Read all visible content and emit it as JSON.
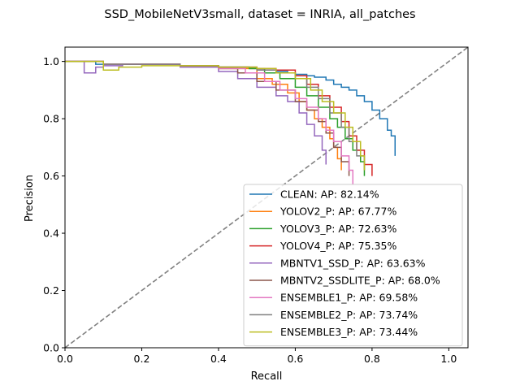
{
  "chart_data": {
    "type": "line",
    "title": "SSD_MobileNetV3small, dataset = INRIA, all_patches",
    "xlabel": "Recall",
    "ylabel": "Precision",
    "xlim": [
      0.0,
      1.05
    ],
    "ylim": [
      0.0,
      1.05
    ],
    "xticks": [
      "0.0",
      "0.2",
      "0.4",
      "0.6",
      "0.8",
      "1.0"
    ],
    "yticks": [
      "0.0",
      "0.2",
      "0.4",
      "0.6",
      "0.8",
      "1.0"
    ],
    "grid": false,
    "legend_position": "lower-right",
    "diagonal_reference": {
      "style": "dashed",
      "color": "#808080",
      "x": [
        0,
        1.05
      ],
      "y": [
        0,
        1.05
      ]
    },
    "series": [
      {
        "name": "CLEAN: AP: 82.14%",
        "color": "#1f77b4",
        "x": [
          0.0,
          0.07,
          0.08,
          0.12,
          0.2,
          0.3,
          0.4,
          0.48,
          0.52,
          0.55,
          0.58,
          0.6,
          0.63,
          0.65,
          0.68,
          0.7,
          0.72,
          0.74,
          0.76,
          0.78,
          0.8,
          0.82,
          0.84,
          0.85,
          0.86,
          0.86
        ],
        "y": [
          1.0,
          1.0,
          0.99,
          0.99,
          0.99,
          0.985,
          0.98,
          0.975,
          0.97,
          0.965,
          0.96,
          0.955,
          0.95,
          0.945,
          0.935,
          0.92,
          0.91,
          0.9,
          0.88,
          0.86,
          0.83,
          0.8,
          0.76,
          0.74,
          0.72,
          0.67
        ]
      },
      {
        "name": "YOLOV2_P: AP: 67.77%",
        "color": "#ff7f0e",
        "x": [
          0.0,
          0.1,
          0.2,
          0.3,
          0.4,
          0.5,
          0.54,
          0.58,
          0.61,
          0.63,
          0.65,
          0.67,
          0.69,
          0.7,
          0.71,
          0.72
        ],
        "y": [
          1.0,
          0.99,
          0.99,
          0.985,
          0.975,
          0.94,
          0.92,
          0.89,
          0.86,
          0.83,
          0.8,
          0.77,
          0.73,
          0.7,
          0.66,
          0.62
        ]
      },
      {
        "name": "YOLOV3_P: AP: 72.63%",
        "color": "#2ca02c",
        "x": [
          0.0,
          0.1,
          0.2,
          0.3,
          0.4,
          0.48,
          0.52,
          0.56,
          0.6,
          0.63,
          0.66,
          0.69,
          0.71,
          0.73,
          0.75,
          0.77,
          0.78
        ],
        "y": [
          1.0,
          0.99,
          0.99,
          0.985,
          0.98,
          0.975,
          0.96,
          0.94,
          0.91,
          0.88,
          0.84,
          0.8,
          0.77,
          0.73,
          0.69,
          0.65,
          0.6
        ]
      },
      {
        "name": "YOLOV4_P: AP: 75.35%",
        "color": "#d62728",
        "x": [
          0.0,
          0.1,
          0.2,
          0.3,
          0.4,
          0.5,
          0.55,
          0.6,
          0.63,
          0.66,
          0.69,
          0.72,
          0.74,
          0.76,
          0.78,
          0.8
        ],
        "y": [
          1.0,
          0.99,
          0.99,
          0.985,
          0.98,
          0.975,
          0.97,
          0.95,
          0.92,
          0.88,
          0.84,
          0.79,
          0.74,
          0.69,
          0.64,
          0.6
        ]
      },
      {
        "name": "MBNTV1_SSD_P: AP: 63.63%",
        "color": "#9467bd",
        "x": [
          0.0,
          0.04,
          0.05,
          0.08,
          0.1,
          0.15,
          0.2,
          0.3,
          0.4,
          0.45,
          0.5,
          0.55,
          0.58,
          0.61,
          0.63,
          0.65,
          0.67,
          0.68
        ],
        "y": [
          1.0,
          1.0,
          0.96,
          0.98,
          0.985,
          0.99,
          0.99,
          0.98,
          0.965,
          0.94,
          0.91,
          0.88,
          0.86,
          0.82,
          0.78,
          0.74,
          0.69,
          0.64
        ]
      },
      {
        "name": "MBNTV2_SSDLITE_P: AP: 68.0%",
        "color": "#8c564b",
        "x": [
          0.0,
          0.1,
          0.2,
          0.3,
          0.4,
          0.45,
          0.5,
          0.55,
          0.6,
          0.63,
          0.66,
          0.68,
          0.7,
          0.72,
          0.74
        ],
        "y": [
          1.0,
          0.99,
          0.99,
          0.985,
          0.975,
          0.96,
          0.93,
          0.9,
          0.86,
          0.83,
          0.79,
          0.75,
          0.7,
          0.65,
          0.6
        ]
      },
      {
        "name": "ENSEMBLE1_P: AP: 69.58%",
        "color": "#e377c2",
        "x": [
          0.0,
          0.1,
          0.2,
          0.24,
          0.3,
          0.4,
          0.47,
          0.52,
          0.56,
          0.6,
          0.63,
          0.66,
          0.68,
          0.7,
          0.72,
          0.74,
          0.75
        ],
        "y": [
          1.0,
          0.99,
          0.99,
          0.99,
          0.985,
          0.975,
          0.96,
          0.93,
          0.9,
          0.87,
          0.84,
          0.8,
          0.76,
          0.72,
          0.67,
          0.62,
          0.57
        ]
      },
      {
        "name": "ENSEMBLE2_P: AP: 73.74%",
        "color": "#7f7f7f",
        "x": [
          0.0,
          0.08,
          0.1,
          0.2,
          0.3,
          0.4,
          0.5,
          0.55,
          0.6,
          0.63,
          0.66,
          0.69,
          0.72,
          0.74,
          0.76,
          0.78
        ],
        "y": [
          1.0,
          1.0,
          0.99,
          0.99,
          0.985,
          0.98,
          0.97,
          0.96,
          0.94,
          0.91,
          0.87,
          0.82,
          0.77,
          0.72,
          0.67,
          0.62
        ]
      },
      {
        "name": "ENSEMBLE3_P: AP: 73.44%",
        "color": "#bcbd22",
        "x": [
          0.0,
          0.09,
          0.1,
          0.14,
          0.2,
          0.3,
          0.4,
          0.5,
          0.55,
          0.6,
          0.64,
          0.67,
          0.7,
          0.73,
          0.75,
          0.77,
          0.78
        ],
        "y": [
          1.0,
          1.0,
          0.97,
          0.98,
          0.985,
          0.985,
          0.98,
          0.975,
          0.96,
          0.94,
          0.9,
          0.86,
          0.82,
          0.77,
          0.72,
          0.67,
          0.62
        ]
      }
    ]
  }
}
